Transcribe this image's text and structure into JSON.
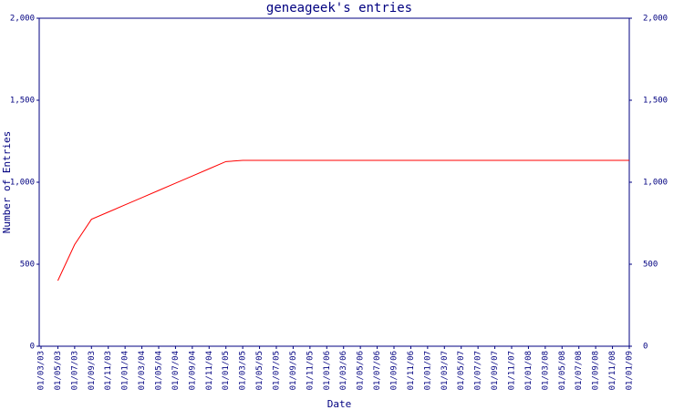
{
  "chart_data": {
    "type": "line",
    "title": "geneageek's entries",
    "x_label": "Date",
    "y_label": "Number of Entries",
    "categories": [
      "01/03/03",
      "01/05/03",
      "01/07/03",
      "01/09/03",
      "01/11/03",
      "01/01/04",
      "01/03/04",
      "01/05/04",
      "01/07/04",
      "01/09/04",
      "01/11/04",
      "01/01/05",
      "01/03/05",
      "01/05/05",
      "01/07/05",
      "01/09/05",
      "01/11/05",
      "01/01/06",
      "01/03/06",
      "01/05/06",
      "01/07/06",
      "01/09/06",
      "01/11/06",
      "01/01/07",
      "01/03/07",
      "01/05/07",
      "01/07/07",
      "01/09/07",
      "01/11/07",
      "01/01/08",
      "01/03/08",
      "01/05/08",
      "01/07/08",
      "01/09/08",
      "01/11/08",
      "01/01/09"
    ],
    "series": [
      {
        "name": "Entries",
        "color": "#ff0000",
        "values": [
          null,
          400,
          620,
          774,
          818,
          862,
          906,
          950,
          994,
          1038,
          1082,
          1126,
          1133,
          1133,
          1133,
          1133,
          1133,
          1133,
          1133,
          1133,
          1133,
          1133,
          1133,
          1133,
          1133,
          1133,
          1133,
          1133,
          1133,
          1133,
          1133,
          1133,
          1133,
          1133,
          1133,
          1133
        ]
      }
    ],
    "ylim": [
      0,
      2000
    ],
    "yticks": [
      0,
      500,
      {
        "value": 1000,
        "label": "1,000"
      },
      {
        "value": 1500,
        "label": "1,500"
      },
      {
        "value": 2000,
        "label": "2,000"
      }
    ],
    "axis_color": "#000080",
    "right_axis_labels": true
  }
}
